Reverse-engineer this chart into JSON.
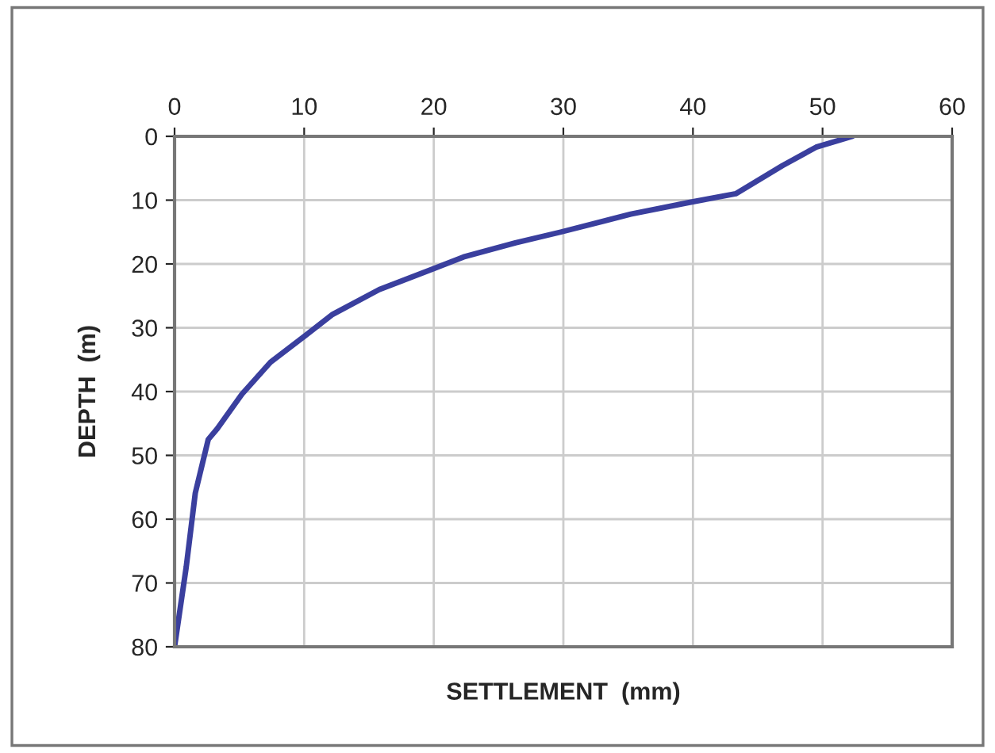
{
  "chart_data": {
    "type": "line",
    "xlabel": "SETTLEMENT  (mm)",
    "ylabel": "DEPTH  (m)",
    "series": [
      {
        "color": "#3a3f9e",
        "x": [
          52.3,
          49.5,
          46.9,
          43.3,
          39.6,
          35.2,
          29.8,
          26.3,
          22.3,
          19.9,
          15.8,
          12.2,
          10.1,
          7.4,
          5.2,
          3.3,
          2.6,
          1.6,
          0.9,
          0
        ],
        "values": [
          0,
          1.7,
          4.6,
          9,
          10.4,
          12.2,
          15,
          16.7,
          18.9,
          20.8,
          24,
          27.9,
          31.2,
          35.4,
          40.4,
          45.8,
          47.5,
          55.9,
          67.5,
          80
        ]
      }
    ],
    "xlim": [
      0,
      60
    ],
    "xticks": [
      0,
      10,
      20,
      30,
      40,
      50,
      60
    ],
    "ylim": [
      80,
      0
    ],
    "yticks": [
      0,
      10,
      20,
      30,
      40,
      50,
      60,
      70,
      80
    ],
    "grid": true,
    "marker": "none",
    "line_style": "solid"
  }
}
